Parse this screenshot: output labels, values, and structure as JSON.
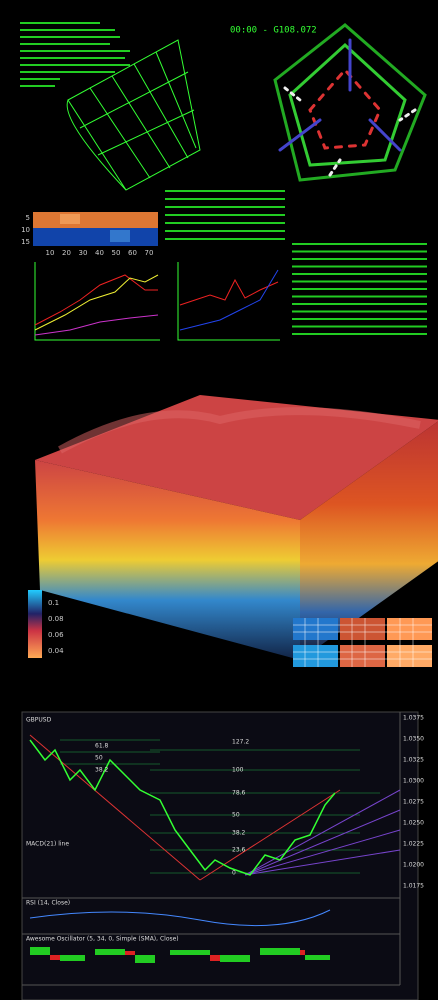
{
  "clock": "00:00 - G108.072",
  "heatmap": {
    "yticks": [
      "5",
      "10",
      "15"
    ],
    "xticks": [
      "10",
      "20",
      "30",
      "40",
      "50",
      "60",
      "70"
    ]
  },
  "colorbar": [
    "0.1",
    "0.08",
    "0.06",
    "0.04"
  ],
  "trading": {
    "title": "GBPUSD",
    "fib_left": [
      "61.8",
      "50",
      "38.2"
    ],
    "fib_right": [
      "127.2",
      "100",
      "78.6",
      "50",
      "38.2",
      "23.6",
      "0"
    ],
    "prices": [
      "1.0375",
      "1.0350",
      "1.0325",
      "1.0300",
      "1.0275",
      "1.0250",
      "1.0225",
      "1.0200",
      "1.0175"
    ],
    "macd": "MACD(21) line",
    "rsi": "RSI (14, Close)",
    "ao": "Awesome Oscillator (5, 34, 0, Simple (SMA), Close)"
  }
}
